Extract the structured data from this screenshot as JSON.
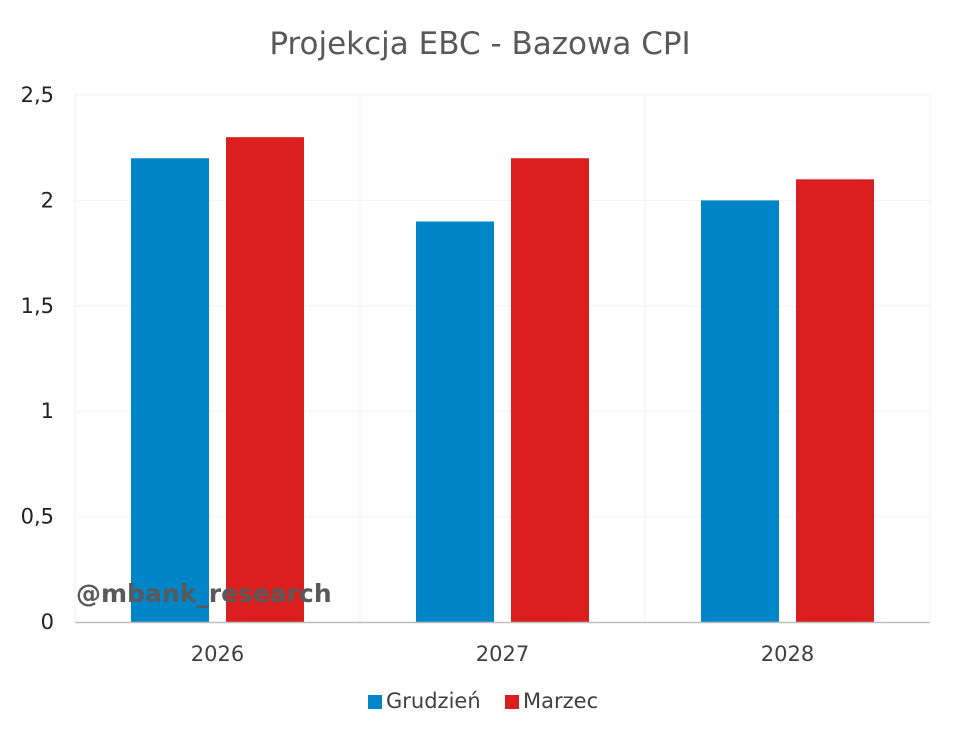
{
  "chart_data": {
    "type": "bar",
    "title": "Projekcja EBC - Bazowa CPI",
    "categories": [
      "2026",
      "2027",
      "2028"
    ],
    "series": [
      {
        "name": "Grudzień",
        "values": [
          2.2,
          1.9,
          2.0
        ],
        "color": "#0085C8"
      },
      {
        "name": "Marzec",
        "values": [
          2.3,
          2.2,
          2.1
        ],
        "color": "#DB1E1E"
      }
    ],
    "ylim": [
      0,
      2.5
    ],
    "yticks": [
      "0",
      "0,5",
      "1",
      "1,5",
      "2",
      "2,5"
    ],
    "ytick_values": [
      0,
      0.5,
      1,
      1.5,
      2,
      2.5
    ],
    "grid": true,
    "legend_position": "bottom"
  },
  "watermark": "@mbank_research"
}
